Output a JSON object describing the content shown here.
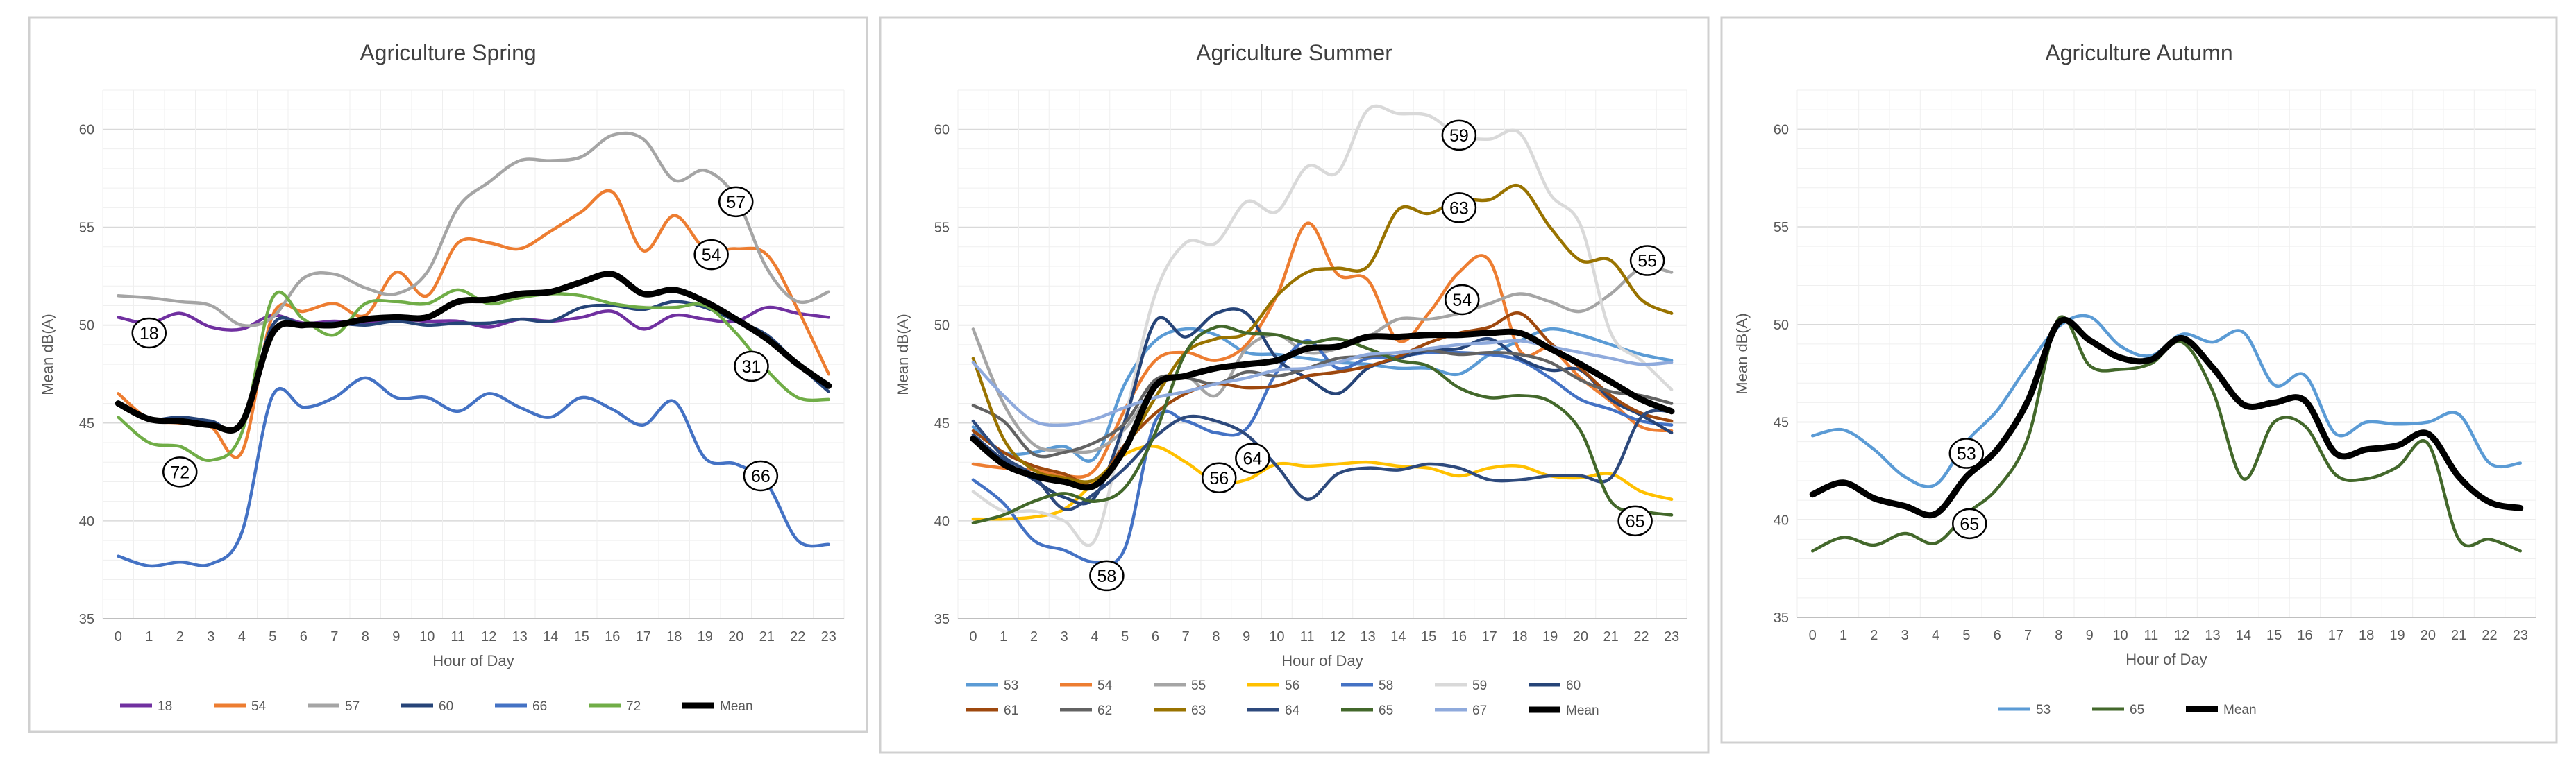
{
  "chart_data": [
    {
      "type": "line",
      "title": "Agriculture Spring",
      "xlabel": "Hour of Day",
      "ylabel": "Mean dB(A)",
      "ylim": [
        35,
        62
      ],
      "yticks": [
        35,
        40,
        45,
        50,
        55,
        60
      ],
      "x": [
        0,
        1,
        2,
        3,
        4,
        5,
        6,
        7,
        8,
        9,
        10,
        11,
        12,
        13,
        14,
        15,
        16,
        17,
        18,
        19,
        20,
        21,
        22,
        23
      ],
      "series": [
        {
          "name": "18",
          "color": "#7030a0",
          "values": [
            50.4,
            50.1,
            50.6,
            49.9,
            49.8,
            50.5,
            50.1,
            50.2,
            50.1,
            50.3,
            50.2,
            50.2,
            49.9,
            50.3,
            50.2,
            50.4,
            50.7,
            49.8,
            50.5,
            50.3,
            50.2,
            50.9,
            50.6,
            50.4
          ]
        },
        {
          "name": "54",
          "color": "#ed7d31",
          "values": [
            46.5,
            45.2,
            45.0,
            44.8,
            43.5,
            50.5,
            50.7,
            51.1,
            50.5,
            52.7,
            51.5,
            54.2,
            54.2,
            53.9,
            54.8,
            55.8,
            56.8,
            53.8,
            55.6,
            53.9,
            53.9,
            53.6,
            50.8,
            47.5
          ]
        },
        {
          "name": "57",
          "color": "#a5a5a5",
          "values": [
            51.5,
            51.4,
            51.2,
            51.0,
            50.0,
            50.4,
            52.4,
            52.6,
            51.9,
            51.6,
            52.7,
            56.0,
            57.3,
            58.4,
            58.4,
            58.6,
            59.7,
            59.5,
            57.4,
            57.9,
            56.5,
            52.9,
            51.2,
            51.7
          ]
        },
        {
          "name": "60",
          "color": "#264478",
          "values": [
            46.0,
            45.2,
            45.3,
            45.1,
            44.9,
            50.0,
            50.0,
            50.1,
            50.0,
            50.2,
            50.0,
            50.1,
            50.1,
            50.3,
            50.2,
            50.9,
            51.0,
            50.8,
            51.2,
            50.9,
            50.2,
            49.5,
            48.0,
            46.6
          ]
        },
        {
          "name": "66",
          "color": "#4472c4",
          "values": [
            38.2,
            37.7,
            37.9,
            37.8,
            39.4,
            46.4,
            45.8,
            46.3,
            47.3,
            46.3,
            46.3,
            45.6,
            46.5,
            45.8,
            45.3,
            46.3,
            45.7,
            44.9,
            46.1,
            43.2,
            42.9,
            41.9,
            39.0,
            38.8
          ]
        },
        {
          "name": "72",
          "color": "#70ad47",
          "values": [
            45.3,
            44.0,
            43.8,
            43.1,
            44.5,
            51.4,
            50.3,
            49.5,
            51.1,
            51.2,
            51.1,
            51.8,
            51.1,
            51.4,
            51.6,
            51.5,
            51.1,
            50.9,
            50.9,
            51.0,
            49.6,
            47.7,
            46.3,
            46.2
          ]
        },
        {
          "name": "Mean",
          "color": "#000000",
          "bold": true,
          "values": [
            46.0,
            45.2,
            45.1,
            44.9,
            45.0,
            49.6,
            50.0,
            50.0,
            50.3,
            50.4,
            50.4,
            51.2,
            51.3,
            51.6,
            51.7,
            52.2,
            52.6,
            51.6,
            51.8,
            51.2,
            50.3,
            49.3,
            48.0,
            46.9
          ]
        }
      ],
      "annotations": [
        {
          "label": "18",
          "x": 1,
          "y": 49.6
        },
        {
          "label": "72",
          "x": 2,
          "y": 42.5
        },
        {
          "label": "57",
          "x": 20,
          "y": 56.3
        },
        {
          "label": "54",
          "x": 19.2,
          "y": 53.6
        },
        {
          "label": "31",
          "x": 20.5,
          "y": 47.9
        },
        {
          "label": "66",
          "x": 20.8,
          "y": 42.3
        }
      ]
    },
    {
      "type": "line",
      "title": "Agriculture Summer",
      "xlabel": "Hour of Day",
      "ylabel": "Mean dB(A)",
      "ylim": [
        35,
        62
      ],
      "yticks": [
        35,
        40,
        45,
        50,
        55,
        60
      ],
      "x": [
        0,
        1,
        2,
        3,
        4,
        5,
        6,
        7,
        8,
        9,
        10,
        11,
        12,
        13,
        14,
        15,
        16,
        17,
        18,
        19,
        20,
        21,
        22,
        23
      ],
      "series": [
        {
          "name": "53",
          "color": "#5b9bd5",
          "values": [
            44.8,
            43.5,
            43.5,
            43.8,
            43.2,
            47.0,
            49.2,
            49.8,
            49.5,
            48.6,
            48.5,
            48.3,
            48.1,
            48.0,
            47.8,
            47.8,
            47.5,
            48.5,
            49.2,
            49.8,
            49.5,
            49.0,
            48.5,
            48.2
          ]
        },
        {
          "name": "54",
          "color": "#ed7d31",
          "values": [
            42.9,
            42.7,
            42.6,
            42.3,
            42.6,
            45.7,
            48.2,
            48.6,
            48.2,
            49.0,
            51.5,
            55.2,
            52.6,
            52.3,
            49.2,
            50.6,
            52.7,
            53.3,
            48.7,
            48.8,
            47.3,
            46.1,
            44.8,
            44.6
          ]
        },
        {
          "name": "55",
          "color": "#a5a5a5",
          "values": [
            49.8,
            46.0,
            43.9,
            43.6,
            43.6,
            44.7,
            46.8,
            47.4,
            46.4,
            48.8,
            49.5,
            48.6,
            48.8,
            49.4,
            50.3,
            50.3,
            50.6,
            51.1,
            51.6,
            51.2,
            50.7,
            51.6,
            52.9,
            52.7
          ]
        },
        {
          "name": "56",
          "color": "#ffc000",
          "values": [
            40.1,
            40.1,
            40.2,
            40.6,
            42.0,
            43.4,
            43.8,
            43.0,
            42.0,
            42.1,
            42.9,
            42.8,
            42.9,
            43.0,
            42.8,
            42.7,
            42.3,
            42.7,
            42.8,
            42.3,
            42.2,
            42.4,
            41.5,
            41.1
          ]
        },
        {
          "name": "58",
          "color": "#4472c4",
          "values": [
            42.1,
            40.9,
            39.0,
            38.5,
            37.9,
            38.6,
            45.1,
            45.1,
            44.5,
            44.7,
            47.6,
            49.2,
            47.8,
            48.3,
            48.4,
            48.6,
            48.6,
            48.5,
            48.2,
            47.3,
            46.2,
            45.7,
            45.1,
            44.9
          ]
        },
        {
          "name": "59",
          "color": "#d9d9d9",
          "values": [
            41.5,
            40.5,
            40.5,
            40.0,
            39.0,
            45.2,
            51.6,
            54.2,
            54.2,
            56.3,
            55.8,
            58.1,
            57.8,
            61.0,
            60.8,
            60.7,
            59.7,
            59.5,
            59.8,
            56.7,
            55.1,
            49.6,
            48.2,
            46.7
          ]
        },
        {
          "name": "60",
          "color": "#264478",
          "values": [
            44.4,
            43.1,
            42.1,
            41.2,
            41.2,
            45.1,
            50.2,
            49.4,
            50.6,
            50.6,
            48.3,
            47.3,
            46.5,
            47.8,
            48.3,
            48.7,
            48.8,
            49.3,
            48.3,
            47.7,
            47.7,
            46.2,
            45.4,
            44.5
          ]
        },
        {
          "name": "61",
          "color": "#9e480e",
          "values": [
            44.6,
            43.5,
            42.8,
            42.4,
            41.9,
            43.9,
            45.5,
            46.5,
            47.0,
            46.8,
            46.9,
            47.4,
            47.6,
            47.9,
            48.4,
            49.1,
            49.6,
            49.9,
            50.6,
            49.1,
            47.8,
            46.4,
            45.5,
            45.1
          ]
        },
        {
          "name": "62",
          "color": "#636363",
          "values": [
            45.9,
            45.1,
            43.4,
            43.5,
            44.0,
            45.0,
            47.2,
            47.3,
            47.0,
            47.6,
            47.4,
            47.8,
            48.3,
            48.4,
            48.6,
            48.7,
            48.5,
            48.6,
            48.5,
            48.1,
            47.2,
            46.6,
            46.4,
            46.0
          ]
        },
        {
          "name": "63",
          "color": "#997300",
          "values": [
            48.3,
            44.2,
            42.6,
            42.2,
            42.1,
            43.7,
            46.3,
            48.6,
            49.3,
            49.6,
            51.5,
            52.7,
            52.9,
            53.0,
            55.9,
            55.7,
            56.4,
            56.4,
            57.1,
            55.0,
            53.3,
            53.3,
            51.3,
            50.6
          ]
        },
        {
          "name": "64",
          "color": "#2e4a7d",
          "values": [
            45.1,
            43.3,
            42.3,
            40.6,
            41.4,
            42.7,
            44.3,
            45.3,
            45.1,
            44.4,
            42.8,
            41.1,
            42.4,
            42.7,
            42.6,
            42.9,
            42.7,
            42.1,
            42.1,
            42.3,
            42.3,
            42.2,
            45.3,
            45.6
          ]
        },
        {
          "name": "65",
          "color": "#43682b",
          "values": [
            39.9,
            40.3,
            41.0,
            41.4,
            41.0,
            41.7,
            44.5,
            48.6,
            49.9,
            49.6,
            49.5,
            49.1,
            49.3,
            48.8,
            48.2,
            47.9,
            46.8,
            46.3,
            46.4,
            46.1,
            44.6,
            41.0,
            40.5,
            40.3
          ]
        },
        {
          "name": "67",
          "color": "#8faadc",
          "values": [
            48.1,
            46.4,
            45.1,
            44.9,
            45.2,
            45.8,
            46.3,
            46.6,
            47.0,
            47.3,
            47.7,
            47.8,
            48.1,
            48.5,
            48.6,
            48.8,
            49.0,
            49.1,
            49.2,
            48.9,
            48.6,
            48.3,
            48.0,
            48.1
          ]
        },
        {
          "name": "Mean",
          "color": "#000000",
          "bold": true,
          "values": [
            44.2,
            42.9,
            42.3,
            42.0,
            41.8,
            43.7,
            46.9,
            47.4,
            47.8,
            48.0,
            48.2,
            48.8,
            48.9,
            49.4,
            49.4,
            49.5,
            49.5,
            49.6,
            49.6,
            48.8,
            48.0,
            47.1,
            46.2,
            45.6
          ]
        }
      ],
      "annotations": [
        {
          "label": "59",
          "x": 16.0,
          "y": 59.7
        },
        {
          "label": "63",
          "x": 16.0,
          "y": 56.0
        },
        {
          "label": "55",
          "x": 22.2,
          "y": 53.3
        },
        {
          "label": "54",
          "x": 16.1,
          "y": 51.3
        },
        {
          "label": "64",
          "x": 9.2,
          "y": 43.2
        },
        {
          "label": "56",
          "x": 8.1,
          "y": 42.2
        },
        {
          "label": "58",
          "x": 4.4,
          "y": 37.2
        },
        {
          "label": "65",
          "x": 21.8,
          "y": 40.0
        }
      ]
    },
    {
      "type": "line",
      "title": "Agriculture Autumn",
      "xlabel": "Hour of Day",
      "ylabel": "Mean dB(A)",
      "ylim": [
        35,
        62
      ],
      "yticks": [
        35,
        40,
        45,
        50,
        55,
        60
      ],
      "x": [
        0,
        1,
        2,
        3,
        4,
        5,
        6,
        7,
        8,
        9,
        10,
        11,
        12,
        13,
        14,
        15,
        16,
        17,
        18,
        19,
        20,
        21,
        22,
        23
      ],
      "series": [
        {
          "name": "53",
          "color": "#5b9bd5",
          "values": [
            44.3,
            44.6,
            43.6,
            42.2,
            41.8,
            44.0,
            45.6,
            47.9,
            49.9,
            50.4,
            48.9,
            48.4,
            49.5,
            49.1,
            49.6,
            46.9,
            47.4,
            44.4,
            45.0,
            44.9,
            45.0,
            45.4,
            42.9,
            42.9
          ]
        },
        {
          "name": "65",
          "color": "#43682b",
          "values": [
            38.4,
            39.1,
            38.7,
            39.3,
            38.8,
            40.3,
            41.6,
            44.2,
            50.3,
            47.9,
            47.7,
            48.0,
            49.1,
            46.6,
            42.1,
            45.0,
            44.8,
            42.3,
            42.1,
            42.7,
            43.9,
            39.0,
            39.0,
            38.4
          ]
        },
        {
          "name": "Mean",
          "color": "#000000",
          "bold": true,
          "values": [
            41.3,
            41.9,
            41.1,
            40.7,
            40.3,
            42.2,
            43.6,
            46.1,
            50.1,
            49.2,
            48.3,
            48.2,
            49.3,
            47.8,
            45.9,
            46.0,
            46.1,
            43.4,
            43.6,
            43.8,
            44.4,
            42.2,
            40.9,
            40.6
          ]
        }
      ],
      "annotations": [
        {
          "label": "53",
          "x": 5.0,
          "y": 43.4
        },
        {
          "label": "65",
          "x": 5.1,
          "y": 39.8
        }
      ]
    }
  ]
}
